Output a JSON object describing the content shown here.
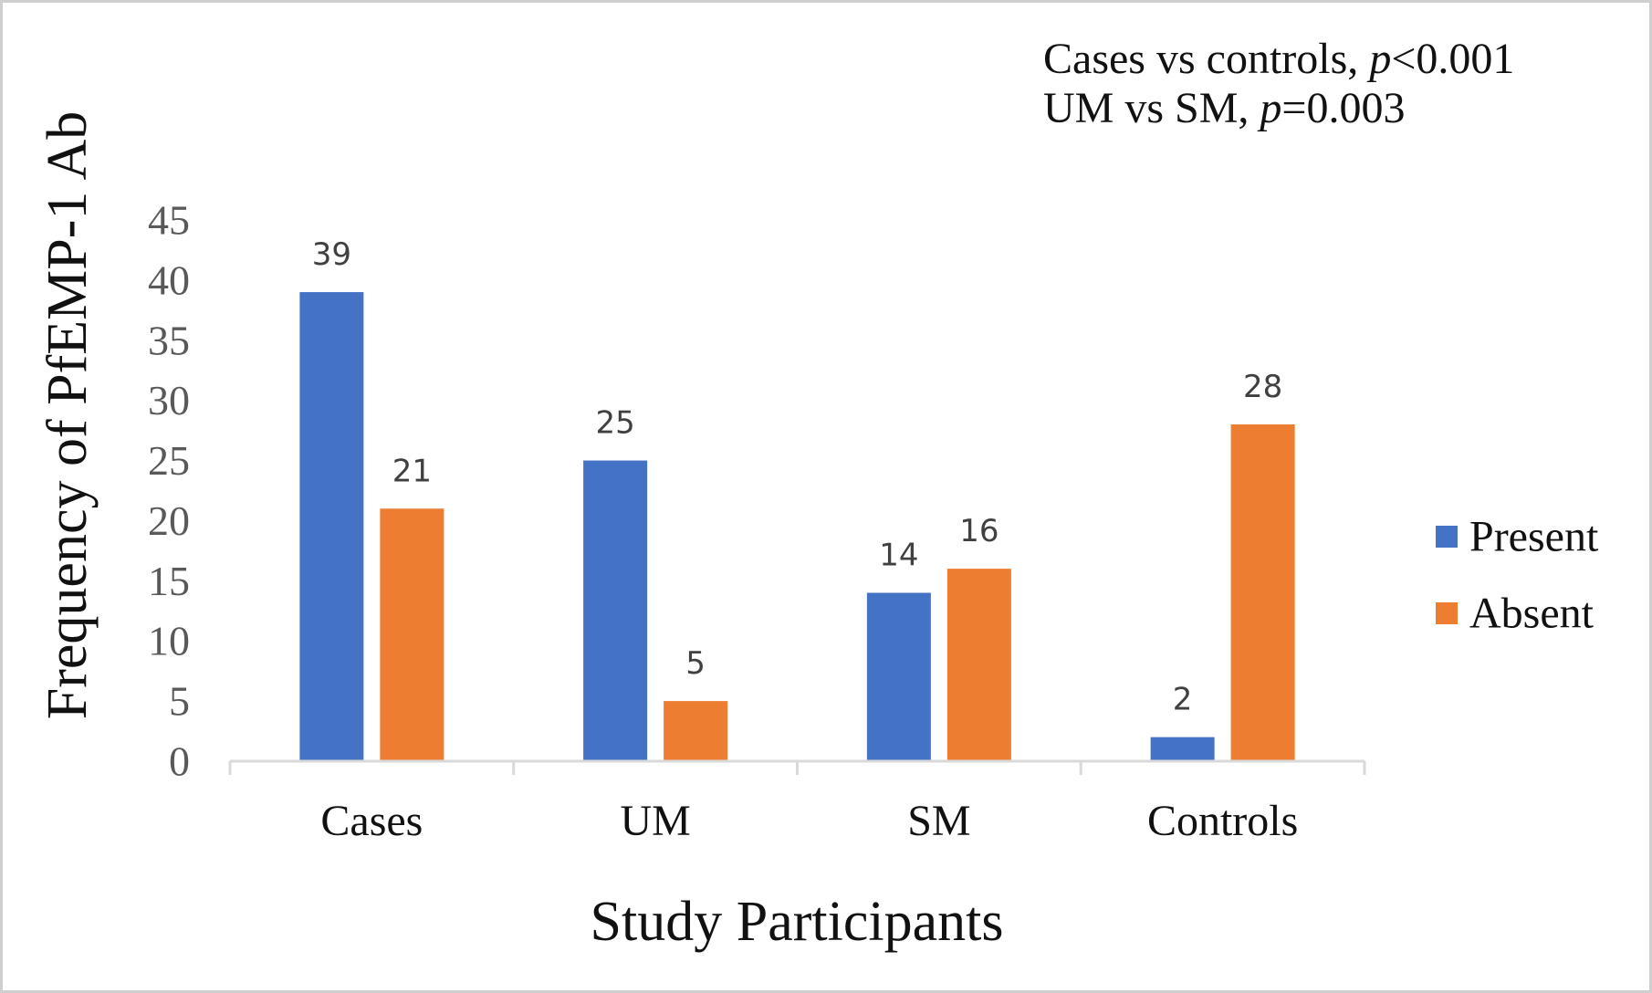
{
  "chart_data": {
    "type": "bar",
    "categories": [
      "Cases",
      "UM",
      "SM",
      "Controls"
    ],
    "series": [
      {
        "name": "Present",
        "values": [
          39,
          25,
          14,
          2
        ],
        "color": "#4472C4"
      },
      {
        "name": "Absent",
        "values": [
          21,
          5,
          16,
          28
        ],
        "color": "#ED7D31"
      }
    ],
    "xlabel": "Study Participants",
    "ylabel": "Frequency of PfEMP-1 Ab",
    "ylim": [
      0,
      45
    ],
    "yticks": [
      "0",
      "5",
      "10",
      "15",
      "20",
      "25",
      "30",
      "35",
      "40",
      "45"
    ],
    "data_labels": true,
    "grid": false,
    "legend_position": "right",
    "annotations": [
      {
        "prefix": "Cases vs controls, ",
        "p": "p",
        "value": "<0.001"
      },
      {
        "prefix": "UM vs SM, ",
        "p": "p",
        "value": "=0.003"
      }
    ],
    "axis_color": "#d9d9d9",
    "tick_label_color": "#595959",
    "data_label_color": "#404040"
  }
}
